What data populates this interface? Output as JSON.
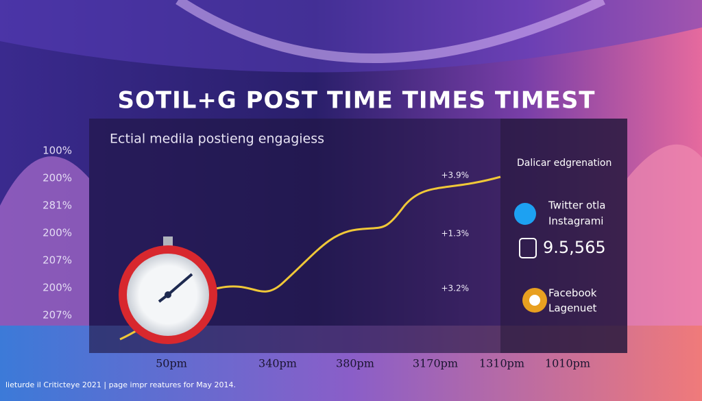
{
  "title": "SOTIL+G POST TIME TIMES TIMEST",
  "panel": {
    "subtitle": "Ectial medila postieng engagiess",
    "y_labels": [
      "100%",
      "200%",
      "281%",
      "200%",
      "207%",
      "200%",
      "207%"
    ],
    "x_labels": [
      "50pm",
      "340pm",
      "380pm",
      "3170pm",
      "1310pm",
      "1010pm"
    ],
    "annotations": [
      "+3.9%",
      "+1.3%",
      "+3.2%"
    ]
  },
  "legend": {
    "title": "Dalicar edgrenation",
    "items": [
      {
        "lines": [
          "Twitter otla",
          "Instagrami"
        ]
      },
      {
        "lines": [
          "9.5,565"
        ]
      },
      {
        "lines": [
          "Facebook",
          "Lagenuet"
        ]
      }
    ]
  },
  "footer": "lieturde il Criticteye 2021 | page impr reatures for May 2014."
}
